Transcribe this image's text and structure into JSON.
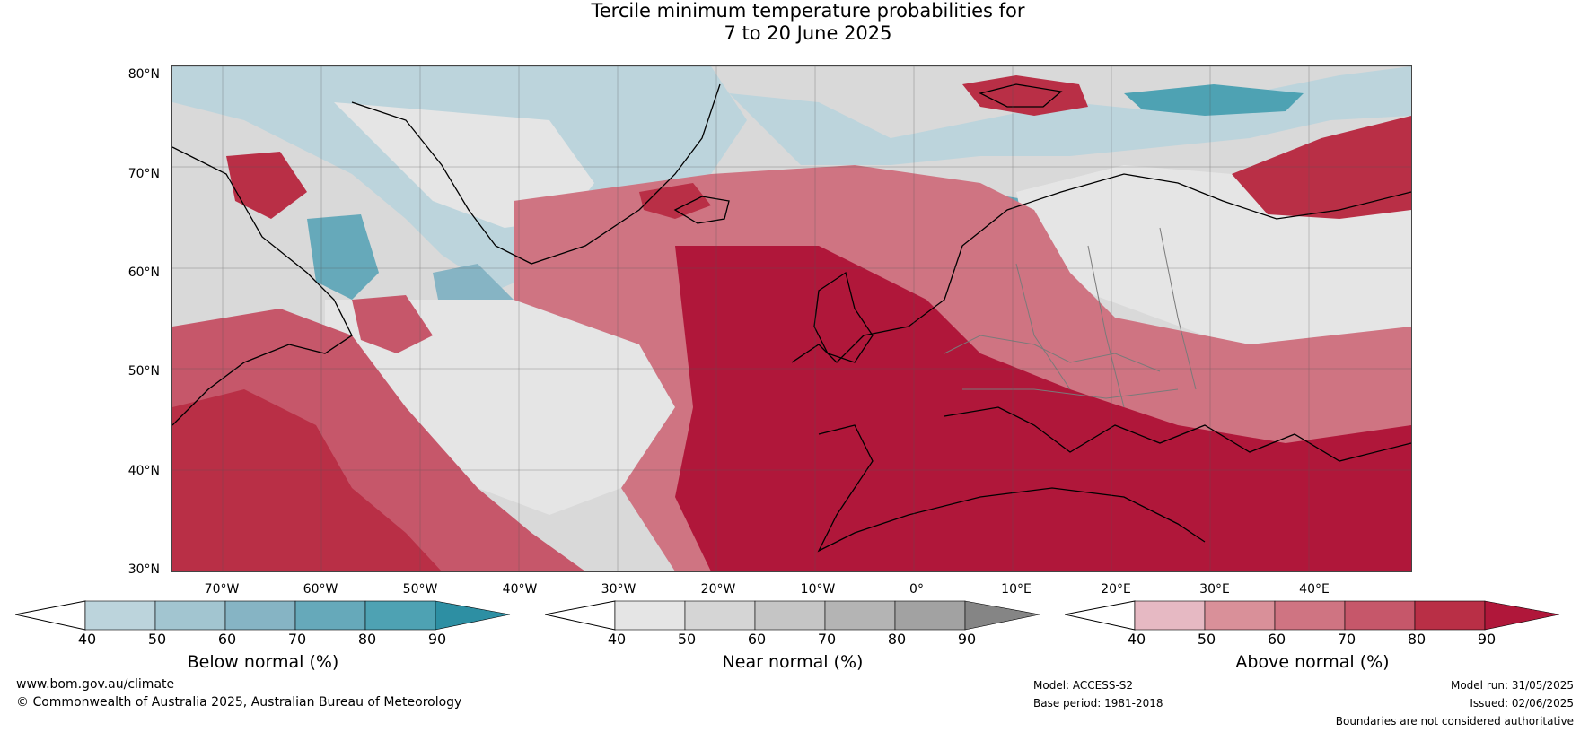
{
  "title": {
    "line1": "Tercile minimum temperature probabilities for",
    "line2": "7 to 20 June 2025"
  },
  "map": {
    "lat_labels": [
      "80°N",
      "70°N",
      "60°N",
      "50°N",
      "40°N",
      "30°N"
    ],
    "lon_labels": [
      "70°W",
      "60°W",
      "50°W",
      "40°W",
      "30°W",
      "20°W",
      "10°W",
      "0°",
      "10°E",
      "20°E",
      "30°E",
      "40°E"
    ],
    "colors": {
      "below": [
        "#bcd4dc",
        "#a2c5d0",
        "#86b4c4",
        "#66a9ba",
        "#4ea2b3",
        "#2d8fa3"
      ],
      "near": [
        "#e5e5e5",
        "#d5d5d5",
        "#c5c5c5",
        "#b4b4b4",
        "#a2a2a2",
        "#858585"
      ],
      "above": [
        "#e6b9c3",
        "#d99099",
        "#cf7482",
        "#c6576a",
        "#b92f46",
        "#b0173a"
      ]
    }
  },
  "colorbars": [
    {
      "title": "Below normal (%)",
      "ticks": [
        "40",
        "50",
        "60",
        "70",
        "80",
        "90"
      ]
    },
    {
      "title": "Near normal (%)",
      "ticks": [
        "40",
        "50",
        "60",
        "70",
        "80",
        "90"
      ]
    },
    {
      "title": "Above normal (%)",
      "ticks": [
        "40",
        "50",
        "60",
        "70",
        "80",
        "90"
      ]
    }
  ],
  "footer": {
    "website": "www.bom.gov.au/climate",
    "copyright": "© Commonwealth of Australia 2025, Australian Bureau of Meteorology",
    "model": "Model: ACCESS-S2",
    "base_period": "Base period: 1981-2018",
    "model_run": "Model run: 31/05/2025",
    "issued": "Issued: 02/06/2025",
    "disclaimer": "Boundaries are not considered authoritative"
  }
}
